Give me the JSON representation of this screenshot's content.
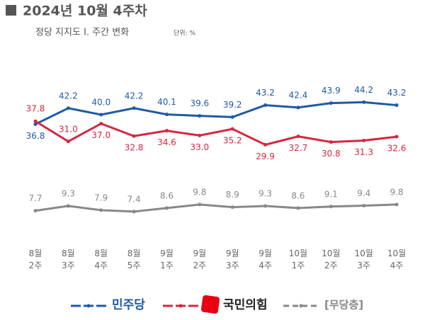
{
  "chart_data": {
    "type": "line",
    "title": "2024년 10월 4주차",
    "subtitle": "정당 지지도 Ⅰ. 주간 변화",
    "unit": "단위: %",
    "categories": [
      "8월\n2주",
      "8월\n3주",
      "8월\n4주",
      "8월\n5주",
      "9월\n1주",
      "9월\n2주",
      "9월\n3주",
      "9월\n4주",
      "10월\n1주",
      "10월\n2주",
      "10월\n3주",
      "10월\n4주"
    ],
    "series": [
      {
        "name": "민주당",
        "color": "#1f5aa6",
        "values": [
          36.8,
          42.2,
          40.0,
          42.2,
          40.1,
          39.6,
          39.2,
          43.2,
          42.4,
          43.9,
          44.2,
          43.2
        ],
        "value_labels": [
          "36.8",
          "42.2",
          "40.0",
          "42.2",
          "40.1",
          "39.6",
          "39.2",
          "43.2",
          "42.4",
          "43.9",
          "44.2",
          "43.2"
        ]
      },
      {
        "name": "국민의힘",
        "color": "#d7263d",
        "values": [
          37.8,
          31.0,
          37.0,
          32.8,
          34.6,
          33.0,
          35.2,
          29.9,
          32.7,
          30.8,
          31.3,
          32.6
        ],
        "value_labels": [
          "37.8",
          "31.0",
          "37.0",
          "32.8",
          "34.6",
          "33.0",
          "35.2",
          "29.9",
          "32.7",
          "30.8",
          "31.3",
          "32.6"
        ]
      },
      {
        "name": "[무당층]",
        "color": "#888888",
        "values": [
          7.7,
          9.3,
          7.9,
          7.4,
          8.6,
          9.8,
          8.9,
          9.3,
          8.6,
          9.1,
          9.4,
          9.8
        ],
        "value_labels": [
          "7.7",
          "9.3",
          "7.9",
          "7.4",
          "8.6",
          "9.8",
          "8.9",
          "9.3",
          "8.6",
          "9.1",
          "9.4",
          "9.8"
        ]
      }
    ]
  }
}
